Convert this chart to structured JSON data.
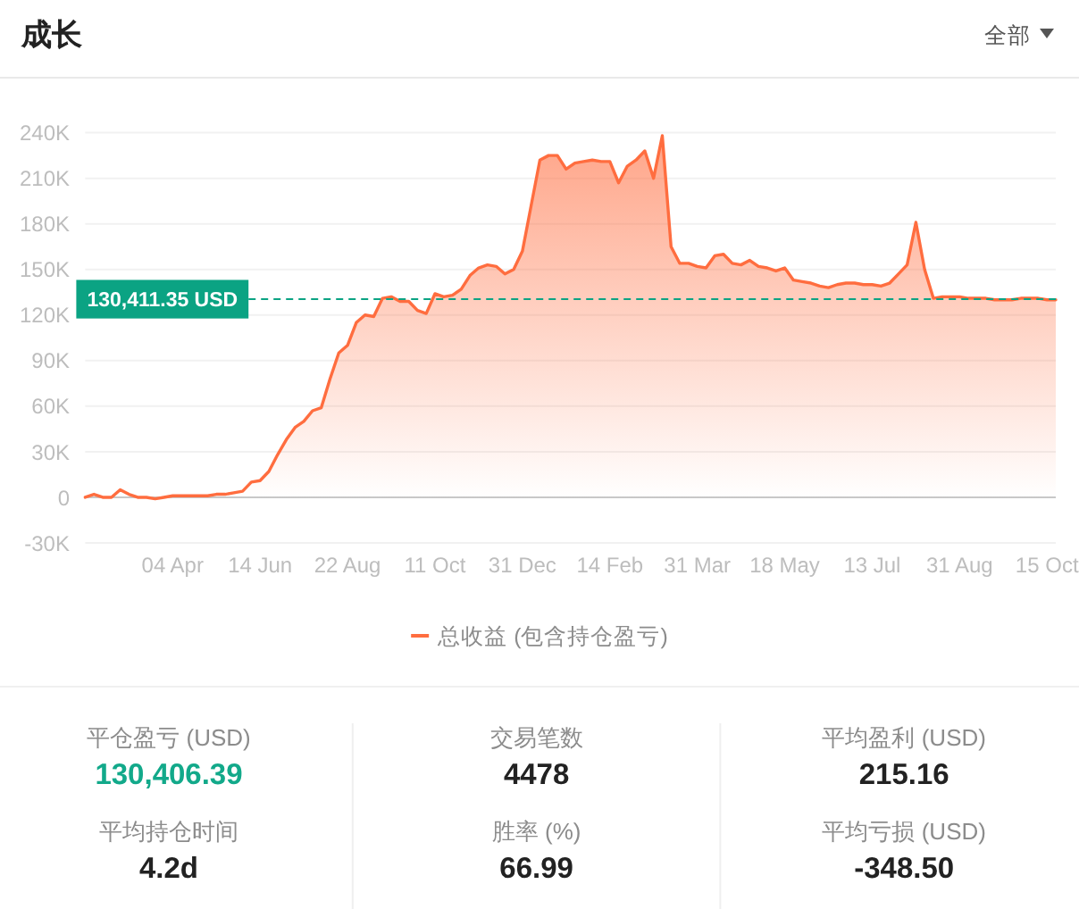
{
  "chart_data": [
    {
      "type": "area",
      "title": "成长",
      "annotations": [
        "全部"
      ],
      "categories": [
        null,
        null,
        null,
        null,
        null,
        null,
        null,
        null,
        null,
        null,
        "04 Apr",
        null,
        null,
        null,
        null,
        null,
        null,
        null,
        null,
        null,
        "14 Jun",
        null,
        null,
        null,
        null,
        null,
        null,
        null,
        null,
        null,
        "22 Aug",
        null,
        null,
        null,
        null,
        null,
        null,
        null,
        null,
        null,
        "11 Oct",
        null,
        null,
        null,
        null,
        null,
        null,
        null,
        null,
        null,
        "31 Dec",
        null,
        null,
        null,
        null,
        null,
        null,
        null,
        null,
        null,
        "14 Feb",
        null,
        null,
        null,
        null,
        null,
        null,
        null,
        null,
        null,
        "31 Mar",
        null,
        null,
        null,
        null,
        null,
        null,
        null,
        null,
        null,
        "18 May",
        null,
        null,
        null,
        null,
        null,
        null,
        null,
        null,
        null,
        "13 Jul",
        null,
        null,
        null,
        null,
        null,
        null,
        null,
        null,
        null,
        "31 Aug",
        null,
        null,
        null,
        null,
        null,
        null,
        null,
        null,
        null,
        "15 Oct",
        null
      ],
      "series": [
        {
          "name": "总收益 (包含持仓盈亏)",
          "color": "#ff6d3f",
          "values": [
            0,
            2000,
            0,
            0,
            5000,
            2000,
            0,
            0,
            -1000,
            0,
            1000,
            1000,
            1000,
            1000,
            1000,
            2000,
            2000,
            3000,
            4000,
            10000,
            11000,
            17000,
            28000,
            38000,
            46000,
            50000,
            57000,
            59000,
            78000,
            95000,
            100000,
            115000,
            120000,
            119000,
            131000,
            132000,
            129000,
            129000,
            123000,
            121000,
            134000,
            132000,
            133000,
            137000,
            146000,
            151000,
            153000,
            152000,
            147000,
            150000,
            162000,
            192000,
            222000,
            225000,
            225000,
            216000,
            220000,
            221000,
            222000,
            221000,
            221000,
            207000,
            218000,
            222000,
            228000,
            210000,
            238000,
            165000,
            154000,
            154000,
            152000,
            151000,
            159000,
            160000,
            154000,
            153000,
            156000,
            152000,
            151000,
            149000,
            151000,
            143000,
            142000,
            141000,
            139000,
            138000,
            140000,
            141000,
            141000,
            140000,
            140000,
            139000,
            141000,
            147000,
            153000,
            181000,
            150000,
            131000,
            132000,
            132000,
            132000,
            131000,
            131000,
            131000,
            130000,
            130000,
            130000,
            131000,
            131000,
            131000,
            130000,
            130000
          ]
        }
      ],
      "ylim": [
        -30000,
        240000
      ],
      "yticks": [
        {
          "value": -30000,
          "label": "-30K"
        },
        0,
        {
          "value": 30000,
          "label": "30K"
        },
        {
          "value": 60000,
          "label": "60K"
        },
        {
          "value": 90000,
          "label": "90K"
        },
        {
          "value": 120000,
          "label": "120K"
        },
        {
          "value": 150000,
          "label": "150K"
        },
        {
          "value": 180000,
          "label": "180K"
        },
        {
          "value": 210000,
          "label": "210K"
        },
        {
          "value": 240000,
          "label": "240K"
        }
      ],
      "grid": "y",
      "legend": "bottom",
      "ref_lines": [
        {
          "axis": "y",
          "value": 130411.35,
          "label": "130,411.35 USD",
          "color": "#0ba383",
          "line_style": "dashed"
        }
      ]
    },
    {
      "type": "other",
      "categories": [
        "平仓盈亏 (USD)",
        "交易笔数",
        "平均盈利 (USD)",
        "平均持仓时间",
        "胜率 (%)",
        "平均亏损 (USD)"
      ],
      "value_labels": [
        "130,406.39",
        "4478",
        "215.16",
        "4.2d",
        "66.99",
        "-348.50"
      ],
      "colors": [
        "#12a98a",
        "#222222",
        "#222222",
        "#222222",
        "#222222",
        "#222222"
      ]
    }
  ]
}
